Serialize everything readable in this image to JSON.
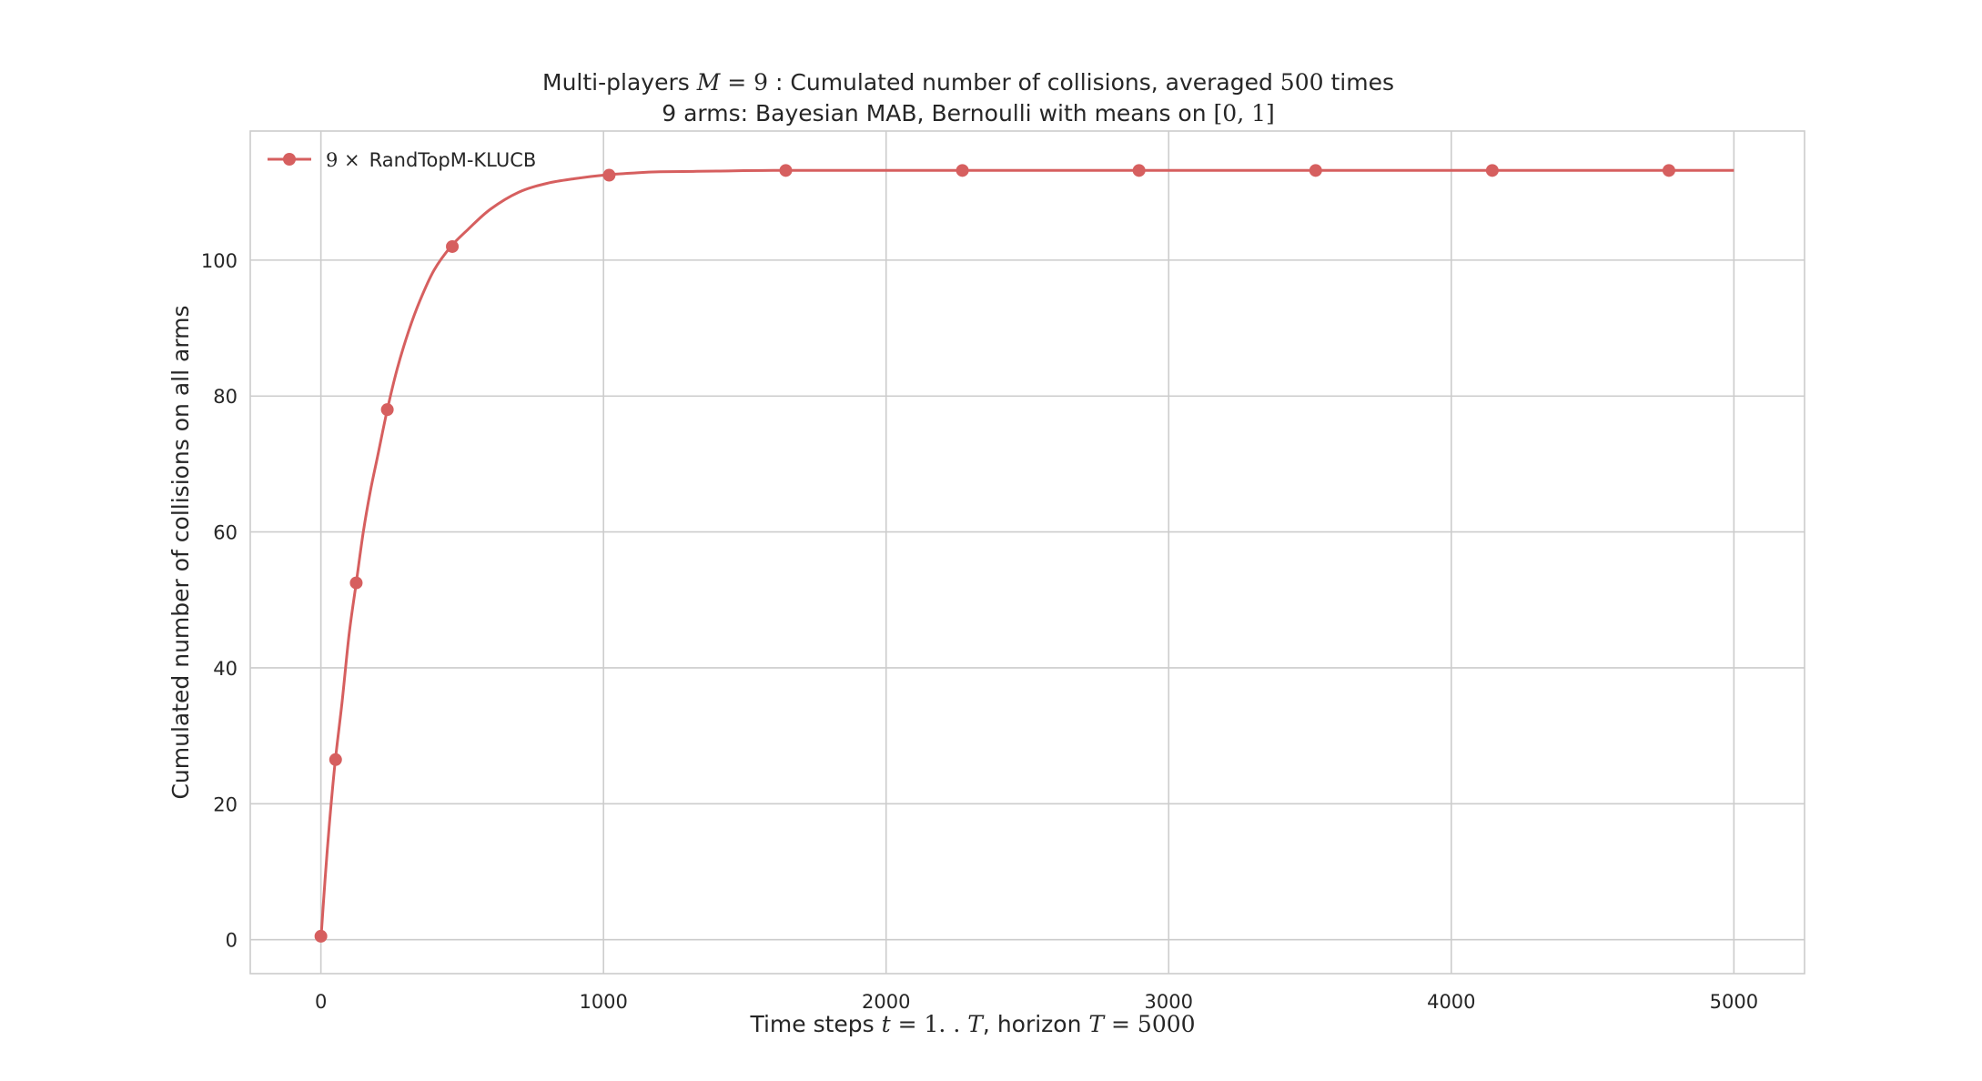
{
  "colors": {
    "series": "#d65f5f",
    "grid": "#cccccc",
    "text": "#262626",
    "background": "#ffffff"
  },
  "chart_data": {
    "type": "line",
    "title_line1": {
      "prefix": "Multi-players ",
      "math_var": "M",
      "math_eq": " = ",
      "math_val": "9",
      "middle": " : Cumulated number of collisions, averaged ",
      "math_count": "500",
      "suffix": " times"
    },
    "title_line2": {
      "prefix": "9 arms: Bayesian MAB, Bernoulli with means on ",
      "math_interval": "[0, 1]"
    },
    "xlabel": {
      "prefix": "Time steps ",
      "math_t": "t",
      "math_range": " = 1. . ",
      "math_T": "T",
      "middle": ", horizon ",
      "math_T2": "T",
      "math_eq": " = ",
      "math_val": "5000"
    },
    "ylabel": "Cumulated number of collisions on all arms",
    "xlim": [
      -250,
      5250
    ],
    "ylim": [
      -5,
      119
    ],
    "xticks": [
      0,
      1000,
      2000,
      3000,
      4000,
      5000
    ],
    "yticks": [
      0,
      20,
      40,
      60,
      80,
      100
    ],
    "grid": true,
    "legend_position": "top-left",
    "series": [
      {
        "name_math": "9 ×",
        "name_text": "RandTopM-KLUCB",
        "color": "#d65f5f",
        "curve": {
          "x": [
            0,
            15,
            30,
            50,
            75,
            100,
            125,
            150,
            175,
            200,
            235,
            270,
            310,
            350,
            400,
            460,
            520,
            600,
            700,
            800,
            900,
            1000,
            1100,
            1200,
            1400,
            1600,
            2000,
            3000,
            4000,
            5000
          ],
          "y": [
            0,
            9,
            17,
            26,
            35,
            45,
            52.5,
            60,
            66,
            71,
            78,
            84,
            89.5,
            94,
            98.5,
            102,
            104.5,
            107.5,
            110,
            111.3,
            112,
            112.5,
            112.8,
            113,
            113.1,
            113.2,
            113.2,
            113.2,
            113.2,
            113.2
          ]
        },
        "markers": {
          "x": [
            0,
            52,
            125,
            235,
            465,
            1020,
            1645,
            2270,
            2895,
            3520,
            4145,
            4770
          ],
          "y": [
            0.5,
            26.5,
            52.5,
            78,
            102,
            112.5,
            113.2,
            113.2,
            113.2,
            113.2,
            113.2,
            113.2
          ]
        }
      }
    ]
  }
}
